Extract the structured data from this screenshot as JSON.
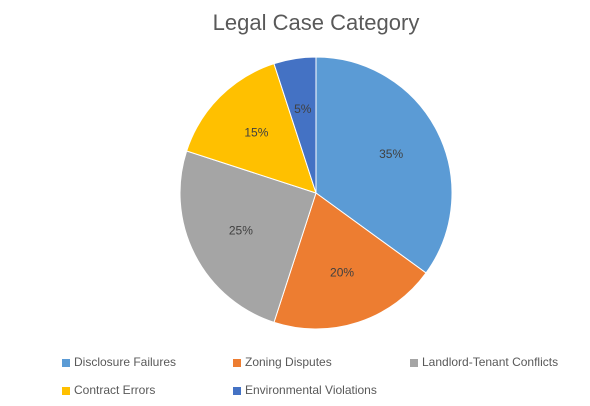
{
  "chart_data": {
    "type": "pie",
    "title": "Legal Case Category",
    "categories": [
      "Disclosure Failures",
      "Zoning Disputes",
      "Landlord-Tenant Conflicts",
      "Contract Errors",
      "Environmental Violations"
    ],
    "values": [
      35,
      20,
      25,
      15,
      5
    ],
    "value_labels": [
      "35%",
      "20%",
      "25%",
      "15%",
      "5%"
    ],
    "colors": [
      "#5b9bd5",
      "#ed7d31",
      "#a5a5a5",
      "#ffc000",
      "#4472c4"
    ],
    "legend": "bottom"
  }
}
